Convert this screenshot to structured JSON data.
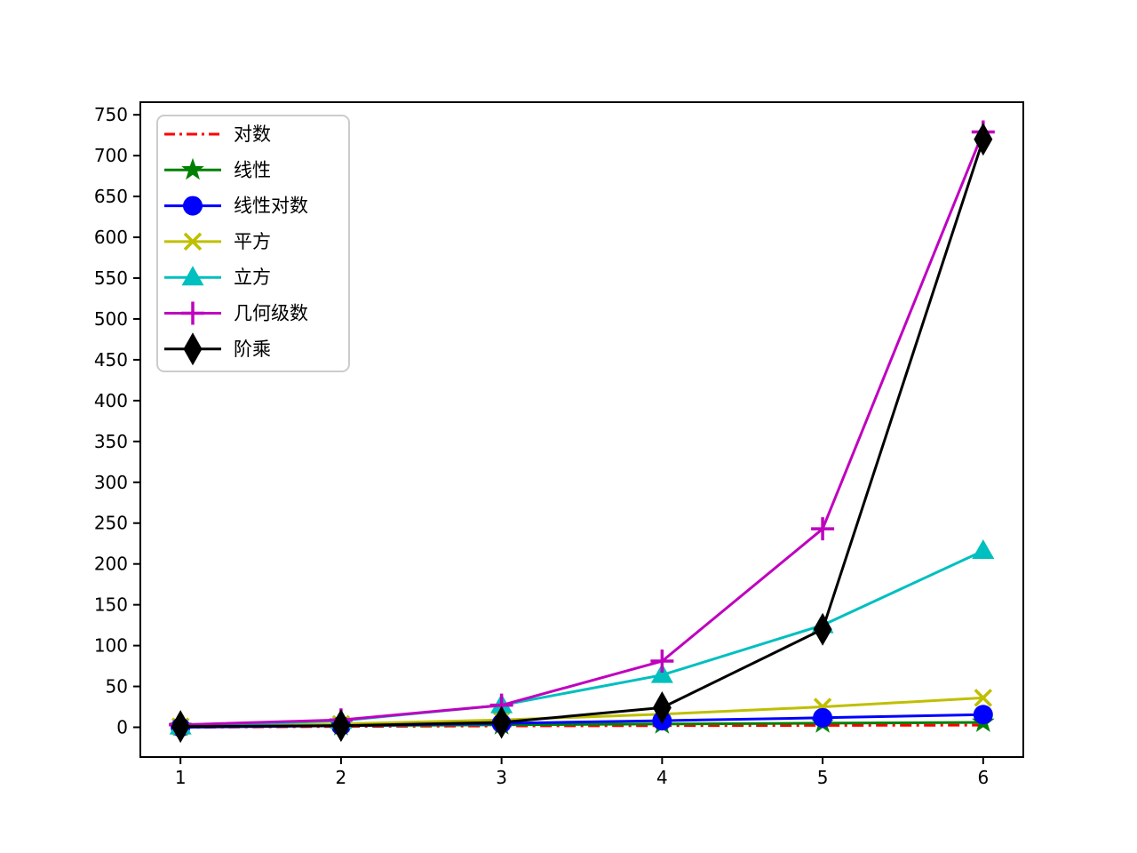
{
  "figure": {
    "background": "#ffffff",
    "frame_color": "#000000"
  },
  "chart_data": {
    "type": "line",
    "title": "",
    "xlabel": "",
    "ylabel": "",
    "grid": false,
    "legend_position": "upper left",
    "legend_border_color": "#cccccc",
    "x": [
      1,
      2,
      3,
      4,
      5,
      6
    ],
    "xlim": [
      0.75,
      6.25
    ],
    "ylim": [
      -36.45,
      765.45
    ],
    "xticks": [
      "1",
      "2",
      "3",
      "4",
      "5",
      "6"
    ],
    "yticks": [
      "0",
      "50",
      "100",
      "150",
      "200",
      "250",
      "300",
      "350",
      "400",
      "450",
      "500",
      "550",
      "600",
      "650",
      "700",
      "750"
    ],
    "ytick_values": [
      0,
      50,
      100,
      150,
      200,
      250,
      300,
      350,
      400,
      450,
      500,
      550,
      600,
      650,
      700,
      750
    ],
    "series": [
      {
        "name": "对数",
        "color": "#ff0000",
        "linestyle": "dashdot",
        "marker": "none",
        "values": [
          0,
          1,
          1.58,
          2,
          2.32,
          2.58
        ]
      },
      {
        "name": "线性",
        "color": "#008000",
        "linestyle": "solid",
        "marker": "star",
        "values": [
          1,
          2,
          3,
          4,
          5,
          6
        ]
      },
      {
        "name": "线性对数",
        "color": "#0000ff",
        "linestyle": "solid",
        "marker": "circle",
        "values": [
          0,
          2,
          4.75,
          8,
          11.61,
          15.51
        ]
      },
      {
        "name": "平方",
        "color": "#bfbf00",
        "linestyle": "solid",
        "marker": "x",
        "values": [
          1,
          4,
          9,
          16,
          25,
          36
        ]
      },
      {
        "name": "立方",
        "color": "#00bfbf",
        "linestyle": "solid",
        "marker": "triangle-up",
        "values": [
          1,
          8,
          27,
          64,
          125,
          216
        ]
      },
      {
        "name": "几何级数",
        "color": "#bf00bf",
        "linestyle": "solid",
        "marker": "plus",
        "values": [
          3,
          9,
          27,
          81,
          243,
          729
        ]
      },
      {
        "name": "阶乘",
        "color": "#000000",
        "linestyle": "solid",
        "marker": "thin-diamond",
        "values": [
          1,
          2,
          6,
          24,
          120,
          720
        ]
      }
    ]
  }
}
